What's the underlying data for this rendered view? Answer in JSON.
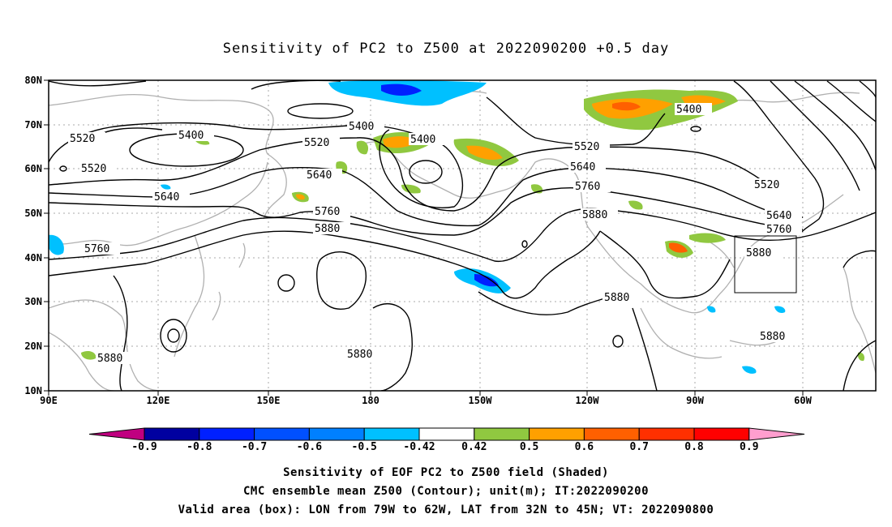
{
  "title": "Sensitivity of PC2 to Z500 at 2022090200 +0.5 day",
  "lat_labels": [
    "80N",
    "70N",
    "60N",
    "50N",
    "40N",
    "30N",
    "20N",
    "10N"
  ],
  "lon_labels": [
    "90E",
    "120E",
    "150E",
    "180",
    "150W",
    "120W",
    "90W",
    "60W"
  ],
  "contour_labels": [
    "5520",
    "5400",
    "5400",
    "5520",
    "5400",
    "5400",
    "5520",
    "5640",
    "5520",
    "5640",
    "5640",
    "5520",
    "5760",
    "5760",
    "5880",
    "5760",
    "5880",
    "5640",
    "5760",
    "5880",
    "5880",
    "5880",
    "5880",
    "5880"
  ],
  "colorbar": {
    "labels": [
      "-0.9",
      "-0.8",
      "-0.7",
      "-0.6",
      "-0.5",
      "-0.42",
      "0.42",
      "0.5",
      "0.6",
      "0.7",
      "0.8",
      "0.9"
    ],
    "colors": [
      "#0000a0",
      "#0020ff",
      "#0050ff",
      "#0080ff",
      "#00c0ff",
      "#ffffff",
      "#90c840",
      "#ffa000",
      "#ff6000",
      "#ff3000",
      "#ff0000"
    ],
    "left_tip": "#c00080",
    "right_tip": "#ff9ecf"
  },
  "captions": [
    "Sensitivity of EOF PC2 to Z500 field (Shaded)",
    "CMC ensemble mean Z500 (Contour); unit(m); IT:2022090200",
    "Valid area (box): LON from 79W to 62W, LAT from 32N to 45N; VT: 2022090800"
  ]
}
